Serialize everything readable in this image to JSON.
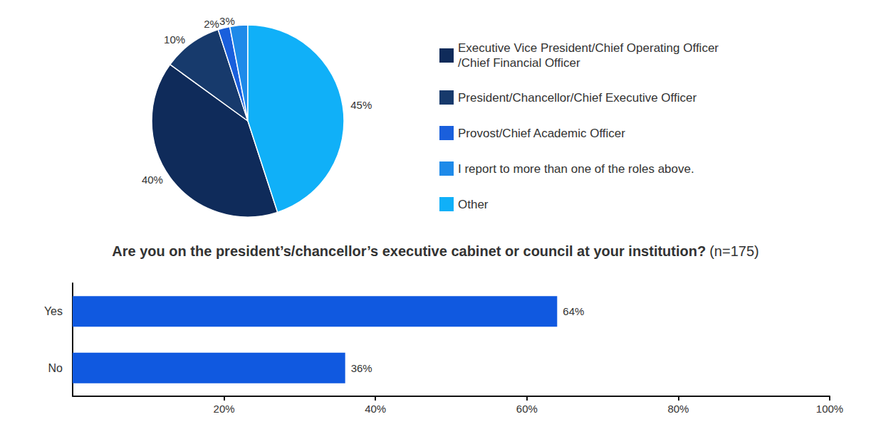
{
  "chart_data": [
    {
      "type": "pie",
      "categories": [
        "Executive Vice President/Chief Operating Officer/Chief Financial Officer",
        "President/Chancellor/Chief Executive Officer",
        "Provost/Chief Academic Officer",
        "I report to more than one of the roles above.",
        "Other"
      ],
      "values": [
        40,
        10,
        2,
        3,
        45
      ],
      "value_labels": [
        "40%",
        "10%",
        "2%",
        "3%",
        "45%"
      ],
      "colors": [
        "#0f2b5a",
        "#173a6c",
        "#1a5fdc",
        "#1e8ae9",
        "#10b0f8"
      ],
      "data_labels": true,
      "legend": "right"
    },
    {
      "type": "bar",
      "orientation": "horizontal",
      "title": "Are you on the president’s/chancellor’s executive cabinet or council at your institution?",
      "subtitle": "(n=175)",
      "categories": [
        "Yes",
        "No"
      ],
      "values": [
        64,
        36
      ],
      "value_labels": [
        "64%",
        "36%"
      ],
      "color": "#1059e0",
      "xlim": [
        0,
        100
      ],
      "xticks": [
        {
          "value": 20,
          "label": "20%"
        },
        {
          "value": 40,
          "label": "40%"
        },
        {
          "value": 60,
          "label": "60%"
        },
        {
          "value": 80,
          "label": "80%"
        },
        {
          "value": 100,
          "label": "100%"
        }
      ],
      "grid": false,
      "data_labels": true
    }
  ]
}
